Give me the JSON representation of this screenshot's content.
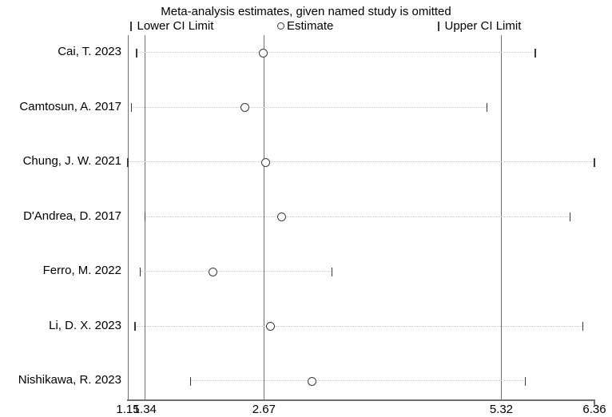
{
  "title": "Meta-analysis estimates, given named study is omitted",
  "legend": {
    "lower": "Lower CI Limit",
    "estimate": "Estimate",
    "upper": "Upper CI Limit"
  },
  "colors": {
    "marker": "#3a3a3a",
    "axis": "#707070",
    "dotted_leader": "#c6c6c6",
    "background": "#ffffff"
  },
  "chart_data": {
    "type": "scatter",
    "subtype": "leave-one-out-sensitivity-forest",
    "title": "Meta-analysis estimates, given named study is omitted",
    "x_axis": {
      "scale": "linear",
      "min": 1.15,
      "max": 6.36,
      "tick_values": [
        1.15,
        1.34,
        2.67,
        5.32,
        6.36
      ],
      "tick_labels": [
        "1.15",
        "1.34",
        "2.67",
        "5.32",
        "6.36"
      ]
    },
    "reference_lines": {
      "lower": 1.34,
      "estimate": 2.67,
      "upper": 5.32
    },
    "legend_position": "top",
    "grid": "vertical-reference-lines-only",
    "studies": [
      {
        "label": "Cai, T. 2023",
        "lower": 1.25,
        "estimate": 2.66,
        "upper": 5.7
      },
      {
        "label": "Camtosun, A. 2017",
        "lower": 1.19,
        "estimate": 2.46,
        "upper": 5.16
      },
      {
        "label": "Chung, J. W. 2021",
        "lower": 1.15,
        "estimate": 2.69,
        "upper": 6.36
      },
      {
        "label": "D'Andrea, D. 2017",
        "lower": 1.34,
        "estimate": 2.87,
        "upper": 6.09
      },
      {
        "label": "Ferro, M. 2022",
        "lower": 1.29,
        "estimate": 2.1,
        "upper": 3.43
      },
      {
        "label": "Li, D. X. 2023",
        "lower": 1.23,
        "estimate": 2.74,
        "upper": 6.23
      },
      {
        "label": "Nishikawa, R. 2023",
        "lower": 1.85,
        "estimate": 3.21,
        "upper": 5.59
      }
    ]
  }
}
